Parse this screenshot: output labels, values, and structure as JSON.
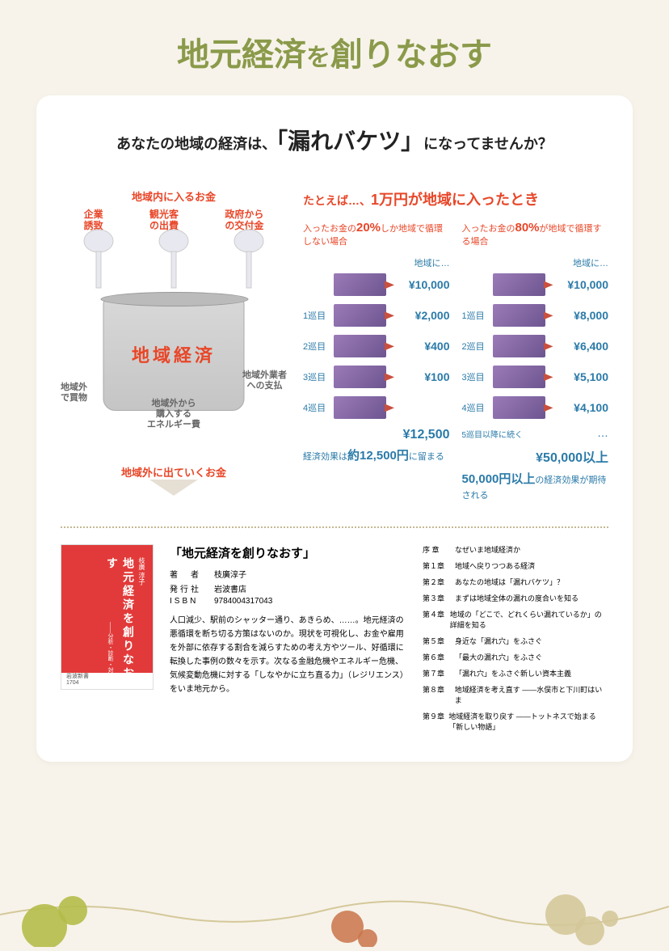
{
  "title": {
    "pre": "地元経済",
    "mid": "を",
    "post": "創りなおす"
  },
  "subtitle": {
    "pre": "あなたの地域の経済は、",
    "big": "「漏れバケツ」",
    "post": "になってませんか？"
  },
  "bucket": {
    "inflow_title": "地域内に入るお金",
    "inflow_items": [
      "企業\n誘致",
      "観光客\nの出費",
      "政府から\nの交付金"
    ],
    "center": "地域経済",
    "leak_left": "地域外\nで買物",
    "leak_center": "地域外から\n購入する\nエネルギー費",
    "leak_right": "地域外業者\nへの支払",
    "outflow_title": "地域外に出ていくお金"
  },
  "circulation": {
    "title_pre": "たとえば…、",
    "title_emph": "1万円が地域に入ったとき",
    "case20": {
      "label_pre": "入ったお金の",
      "pct": "20%",
      "label_post": "しか地域で循環しない場合",
      "init_label": "地域に…",
      "init_value": "¥10,000",
      "cycles": [
        {
          "idx": "1巡目",
          "value": "¥2,000"
        },
        {
          "idx": "2巡目",
          "value": "¥400"
        },
        {
          "idx": "3巡目",
          "value": "¥100"
        },
        {
          "idx": "4巡目",
          "value": ""
        }
      ],
      "total": "¥12,500",
      "summary_pre": "経済効果は",
      "summary_big": "約12,500円",
      "summary_post": "に留まる"
    },
    "case80": {
      "label_pre": "入ったお金の",
      "pct": "80%",
      "label_post": "が地域で循環する場合",
      "init_label": "地域に…",
      "init_value": "¥10,000",
      "cycles": [
        {
          "idx": "1巡目",
          "value": "¥8,000"
        },
        {
          "idx": "2巡目",
          "value": "¥6,400"
        },
        {
          "idx": "3巡目",
          "value": "¥5,100"
        },
        {
          "idx": "4巡目",
          "value": "¥4,100"
        }
      ],
      "continue": "5巡目以降に続く",
      "dots": "…",
      "total": "¥50,000以上",
      "summary_big": "50,000円以上",
      "summary_post": "の経済効果が期待される"
    }
  },
  "book": {
    "cover_title": "地元経済を創りなおす",
    "cover_author": "枝廣 淳子",
    "cover_sub": "――分析・診断・対策",
    "cover_pub": "岩波新書\n1704",
    "title": "「地元経済を創りなおす」",
    "meta": [
      {
        "label": "著　者",
        "value": "枝廣淳子"
      },
      {
        "label": "発行社",
        "value": "岩波書店"
      },
      {
        "label": "ISBN",
        "value": "9784004317043"
      }
    ],
    "description": "人口減少、駅前のシャッター通り、あきらめ、……。地元経済の悪循環を断ち切る方策はないのか。現状を可視化し、お金や雇用を外部に依存する割合を減らすための考え方やツール、好循環に転換した事例の数々を示す。次なる金融危機やエネルギー危機、気候変動危機に対する「しなやかに立ち直る力」（レジリエンス）をいま地元から。",
    "toc": [
      {
        "ch": "序 章",
        "t": "なぜいま地域経済か"
      },
      {
        "ch": "第１章",
        "t": "地域へ戻りつつある経済"
      },
      {
        "ch": "第２章",
        "t": "あなたの地域は「漏れバケツ」？"
      },
      {
        "ch": "第３章",
        "t": "まずは地域全体の漏れの度合いを知る"
      },
      {
        "ch": "第４章",
        "t": "地域の「どこで、どれくらい漏れているか」の詳細を知る"
      },
      {
        "ch": "第５章",
        "t": "身近な「漏れ穴」をふさぐ"
      },
      {
        "ch": "第６章",
        "t": "「最大の漏れ穴」をふさぐ"
      },
      {
        "ch": "第７章",
        "t": "「漏れ穴」をふさぐ新しい資本主義"
      },
      {
        "ch": "第８章",
        "t": "地域経済を考え直す ――水俣市と下川町はいま"
      },
      {
        "ch": "第９章",
        "t": "地域経済を取り戻す ――トットネスで始まる「新しい物語」"
      }
    ]
  },
  "colors": {
    "title": "#8a9a4a",
    "accent_red": "#e84628",
    "accent_blue": "#2a7aa8",
    "bill": "#9b7bb8",
    "bg": "#f7f3ea"
  }
}
